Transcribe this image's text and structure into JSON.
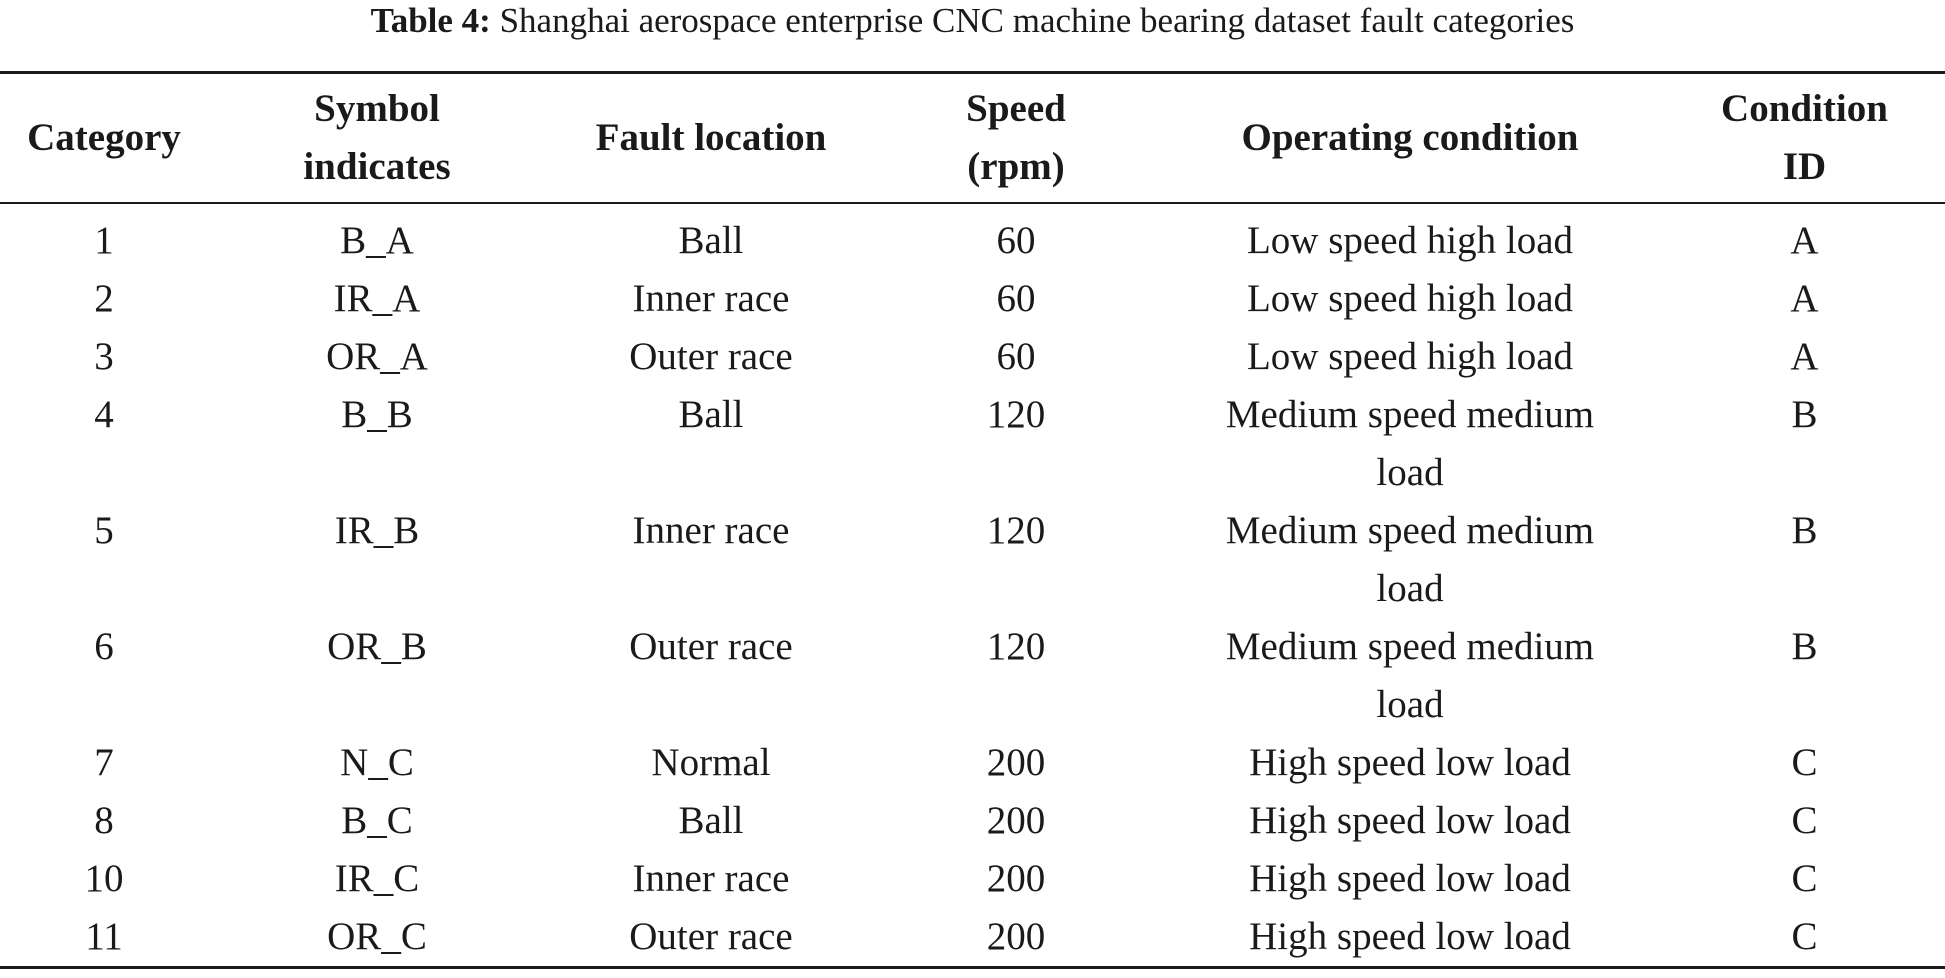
{
  "caption": {
    "label": "Table 4:",
    "text": " Shanghai aerospace enterprise CNC machine bearing dataset fault categories"
  },
  "headers": [
    "Category",
    "Symbol indicates",
    "Fault location",
    "Speed (rpm)",
    "Operating condition",
    "Condition ID"
  ],
  "rows": [
    [
      "1",
      "B_A",
      "Ball",
      "60",
      "Low speed high load",
      "A"
    ],
    [
      "2",
      "IR_A",
      "Inner race",
      "60",
      "Low speed high load",
      "A"
    ],
    [
      "3",
      "OR_A",
      "Outer race",
      "60",
      "Low speed high load",
      "A"
    ],
    [
      "4",
      "B_B",
      "Ball",
      "120",
      "Medium speed medium load",
      "B"
    ],
    [
      "5",
      "IR_B",
      "Inner race",
      "120",
      "Medium speed medium load",
      "B"
    ],
    [
      "6",
      "OR_B",
      "Outer race",
      "120",
      "Medium speed medium load",
      "B"
    ],
    [
      "7",
      "N_C",
      "Normal",
      "200",
      "High speed low load",
      "C"
    ],
    [
      "8",
      "B_C",
      "Ball",
      "200",
      "High speed low load",
      "C"
    ],
    [
      "10",
      "IR_C",
      "Inner race",
      "200",
      "High speed low load",
      "C"
    ],
    [
      "11",
      "OR_C",
      "Outer race",
      "200",
      "High speed low load",
      "C"
    ]
  ]
}
